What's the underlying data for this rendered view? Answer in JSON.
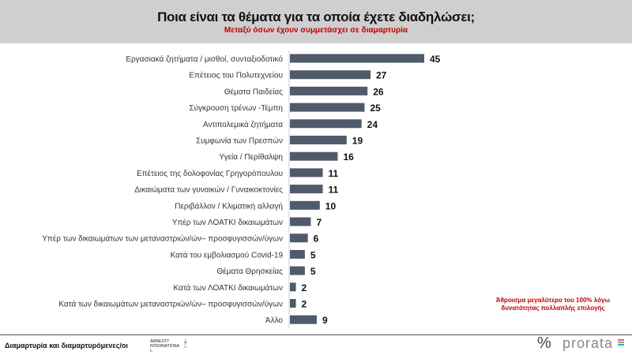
{
  "header": {
    "title": "Ποια είναι τα θέματα για τα οποία έχετε διαδηλώσει;",
    "subtitle": "Μεταξύ όσων έχουν συμμετάσχει σε διαμαρτυρία"
  },
  "note": "Άθροισμα μεγαλύτερο του 100% λόγω δυνατότητας πολλαπλής επιλογής",
  "footer": {
    "left": "Διαμαρτυρία και διαμαρτυρόμενες/οι",
    "amnesty": "AMNESTY INTERNATIONAL",
    "brand_symbol": "%",
    "brand": "prorata"
  },
  "colors": {
    "bar": "#4f5b6b",
    "accent": "#c00000"
  },
  "chart_data": {
    "type": "bar",
    "orientation": "horizontal",
    "categories": [
      "Εργασιακά ζητήματα / μισθοί, συνταξιοδοτικό",
      "Επέτειος του Πολυτεχνείου",
      "Θέματα Παιδείας",
      "Σύγκρουση τρένων -Τέμπη",
      "Αντιπολεμικά ζητήματα",
      "Συμφωνία των Πρεσπών",
      "Υγεία / Περίθαλψη",
      "Επέτειος της δολοφονίας Γρηγορόπουλου",
      "Δικαιώματα των γυναικών / Γυναικοκτονίες",
      "Περιβάλλον / Κλιματική αλλαγή",
      "Υπέρ των ΛΟΑΤΚΙ δικαιωμάτων",
      "Υπέρ των δικαιωμάτων των μεταναστριών/ών– προσφυγισσών/ύγων",
      "Κατά του εμβολιασμού Covid-19",
      "Θέματα Θρησκείας",
      "Κατά των ΛΟΑΤΚΙ δικαιωμάτων",
      "Κατά των δικαιωμάτων μεταναστριών/ών– προσφυγισσών/ύγων",
      "Άλλο"
    ],
    "values": [
      45,
      27,
      26,
      25,
      24,
      19,
      16,
      11,
      11,
      10,
      7,
      6,
      5,
      5,
      2,
      2,
      9
    ],
    "title": "Ποια είναι τα θέματα για τα οποία έχετε διαδηλώσει;",
    "xlim": [
      0,
      45
    ]
  }
}
